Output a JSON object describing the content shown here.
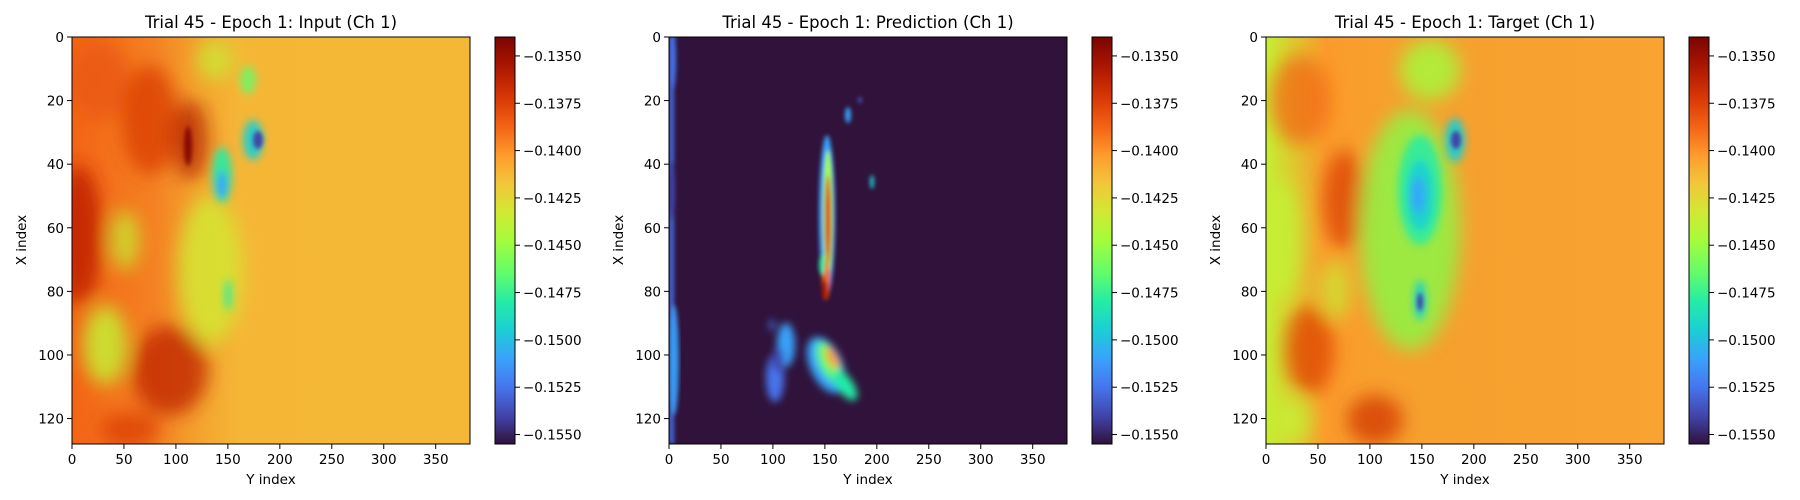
{
  "chart_data": [
    {
      "type": "heatmap",
      "title": "Trial 45 - Epoch 1: Input (Ch 1)",
      "xlabel": "Y index",
      "ylabel": "X index",
      "xlim": [
        0,
        383
      ],
      "ylim": [
        128,
        0
      ],
      "xticks": [
        "0",
        "50",
        "100",
        "150",
        "200",
        "250",
        "300",
        "350"
      ],
      "yticks": [
        "0",
        "20",
        "40",
        "60",
        "80",
        "100",
        "120"
      ],
      "colormap": "turbo",
      "colorbar": {
        "vmin": -0.1555,
        "vmax": -0.134,
        "ticks": [
          "−0.1350",
          "−0.1375",
          "−0.1400",
          "−0.1425",
          "−0.1450",
          "−0.1475",
          "−0.1500",
          "−0.1525",
          "−0.1550"
        ]
      },
      "background_value": -0.1405
    },
    {
      "type": "heatmap",
      "title": "Trial 45 - Epoch 1: Prediction (Ch 1)",
      "xlabel": "Y index",
      "ylabel": "X index",
      "xlim": [
        0,
        383
      ],
      "ylim": [
        128,
        0
      ],
      "xticks": [
        "0",
        "50",
        "100",
        "150",
        "200",
        "250",
        "300",
        "350"
      ],
      "yticks": [
        "0",
        "20",
        "40",
        "60",
        "80",
        "100",
        "120"
      ],
      "colormap": "turbo",
      "colorbar": {
        "vmin": -0.1555,
        "vmax": -0.134,
        "ticks": [
          "−0.1350",
          "−0.1375",
          "−0.1400",
          "−0.1425",
          "−0.1450",
          "−0.1475",
          "−0.1500",
          "−0.1525",
          "−0.1550"
        ]
      },
      "background_value": -0.1555
    },
    {
      "type": "heatmap",
      "title": "Trial 45 - Epoch 1: Target (Ch 1)",
      "xlabel": "Y index",
      "ylabel": "X index",
      "xlim": [
        0,
        383
      ],
      "ylim": [
        128,
        0
      ],
      "xticks": [
        "0",
        "50",
        "100",
        "150",
        "200",
        "250",
        "300",
        "350"
      ],
      "yticks": [
        "0",
        "20",
        "40",
        "60",
        "80",
        "100",
        "120"
      ],
      "colormap": "turbo",
      "colorbar": {
        "vmin": -0.1555,
        "vmax": -0.134,
        "ticks": [
          "−0.1350",
          "−0.1375",
          "−0.1400",
          "−0.1425",
          "−0.1450",
          "−0.1475",
          "−0.1500",
          "−0.1525",
          "−0.1550"
        ]
      },
      "background_value": -0.141
    }
  ]
}
